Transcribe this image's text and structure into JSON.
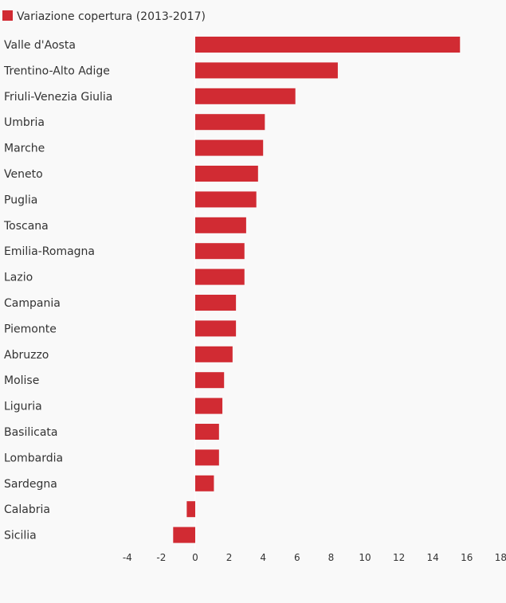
{
  "chart_data": {
    "type": "bar",
    "orientation": "horizontal",
    "categories": [
      "Valle d'Aosta",
      "Trentino-Alto Adige",
      "Friuli-Venezia Giulia",
      "Umbria",
      "Marche",
      "Veneto",
      "Puglia",
      "Toscana",
      "Emilia-Romagna",
      "Lazio",
      "Campania",
      "Piemonte",
      "Abruzzo",
      "Molise",
      "Liguria",
      "Basilicata",
      "Lombardia",
      "Sardegna",
      "Calabria",
      "Sicilia"
    ],
    "series": [
      {
        "name": "Variazione copertura (2013-2017)",
        "color": "#d12b33",
        "values": [
          15.6,
          8.4,
          5.9,
          4.1,
          4.0,
          3.7,
          3.6,
          3.0,
          2.9,
          2.9,
          2.4,
          2.4,
          2.2,
          1.7,
          1.6,
          1.4,
          1.4,
          1.1,
          -0.5,
          -1.3
        ]
      }
    ],
    "xlim": [
      -4,
      18
    ],
    "xticks": [
      "-4",
      "-2",
      "0",
      "2",
      "4",
      "6",
      "8",
      "10",
      "12",
      "14",
      "16",
      "18"
    ],
    "xtick_values": [
      -4,
      -2,
      0,
      2,
      4,
      6,
      8,
      10,
      12,
      14,
      16,
      18
    ],
    "legend_position": "top-left",
    "grid": false,
    "title": "",
    "xlabel": "",
    "ylabel": ""
  }
}
